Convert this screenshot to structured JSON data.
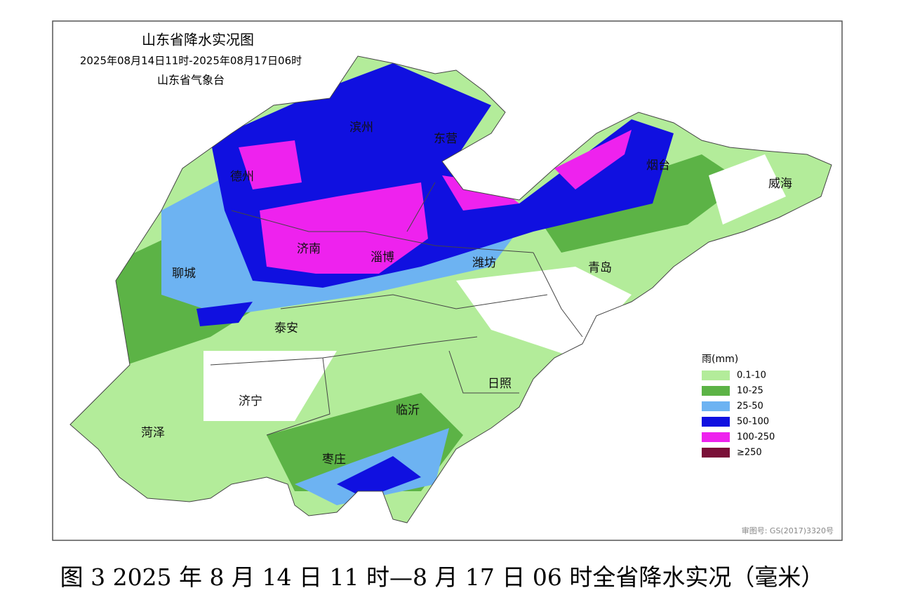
{
  "map": {
    "title": "山东省降水实况图",
    "subtitle": "2025年08月14日11时-2025年08月17日06时",
    "agency": "山东省气象台",
    "cities": [
      "德州",
      "滨州",
      "东营",
      "烟台",
      "威海",
      "聊城",
      "济南",
      "淄博",
      "潍坊",
      "青岛",
      "泰安",
      "济宁",
      "菏泽",
      "临沂",
      "日照",
      "枣庄"
    ],
    "legend": {
      "title": "雨(mm)",
      "items": [
        {
          "label": "0.1-10",
          "color": "#b3ec9a"
        },
        {
          "label": "10-25",
          "color": "#5cb346"
        },
        {
          "label": "25-50",
          "color": "#6db3f2"
        },
        {
          "label": "50-100",
          "color": "#1010e0"
        },
        {
          "label": "100-250",
          "color": "#ee22ee"
        },
        {
          "label": "≥250",
          "color": "#7a1038"
        }
      ]
    },
    "review_number": "审图号: GS(2017)3320号"
  },
  "caption": "图 3 2025 年 8 月 14 日 11 时—8 月 17 日 06 时全省降水实况（毫米）"
}
